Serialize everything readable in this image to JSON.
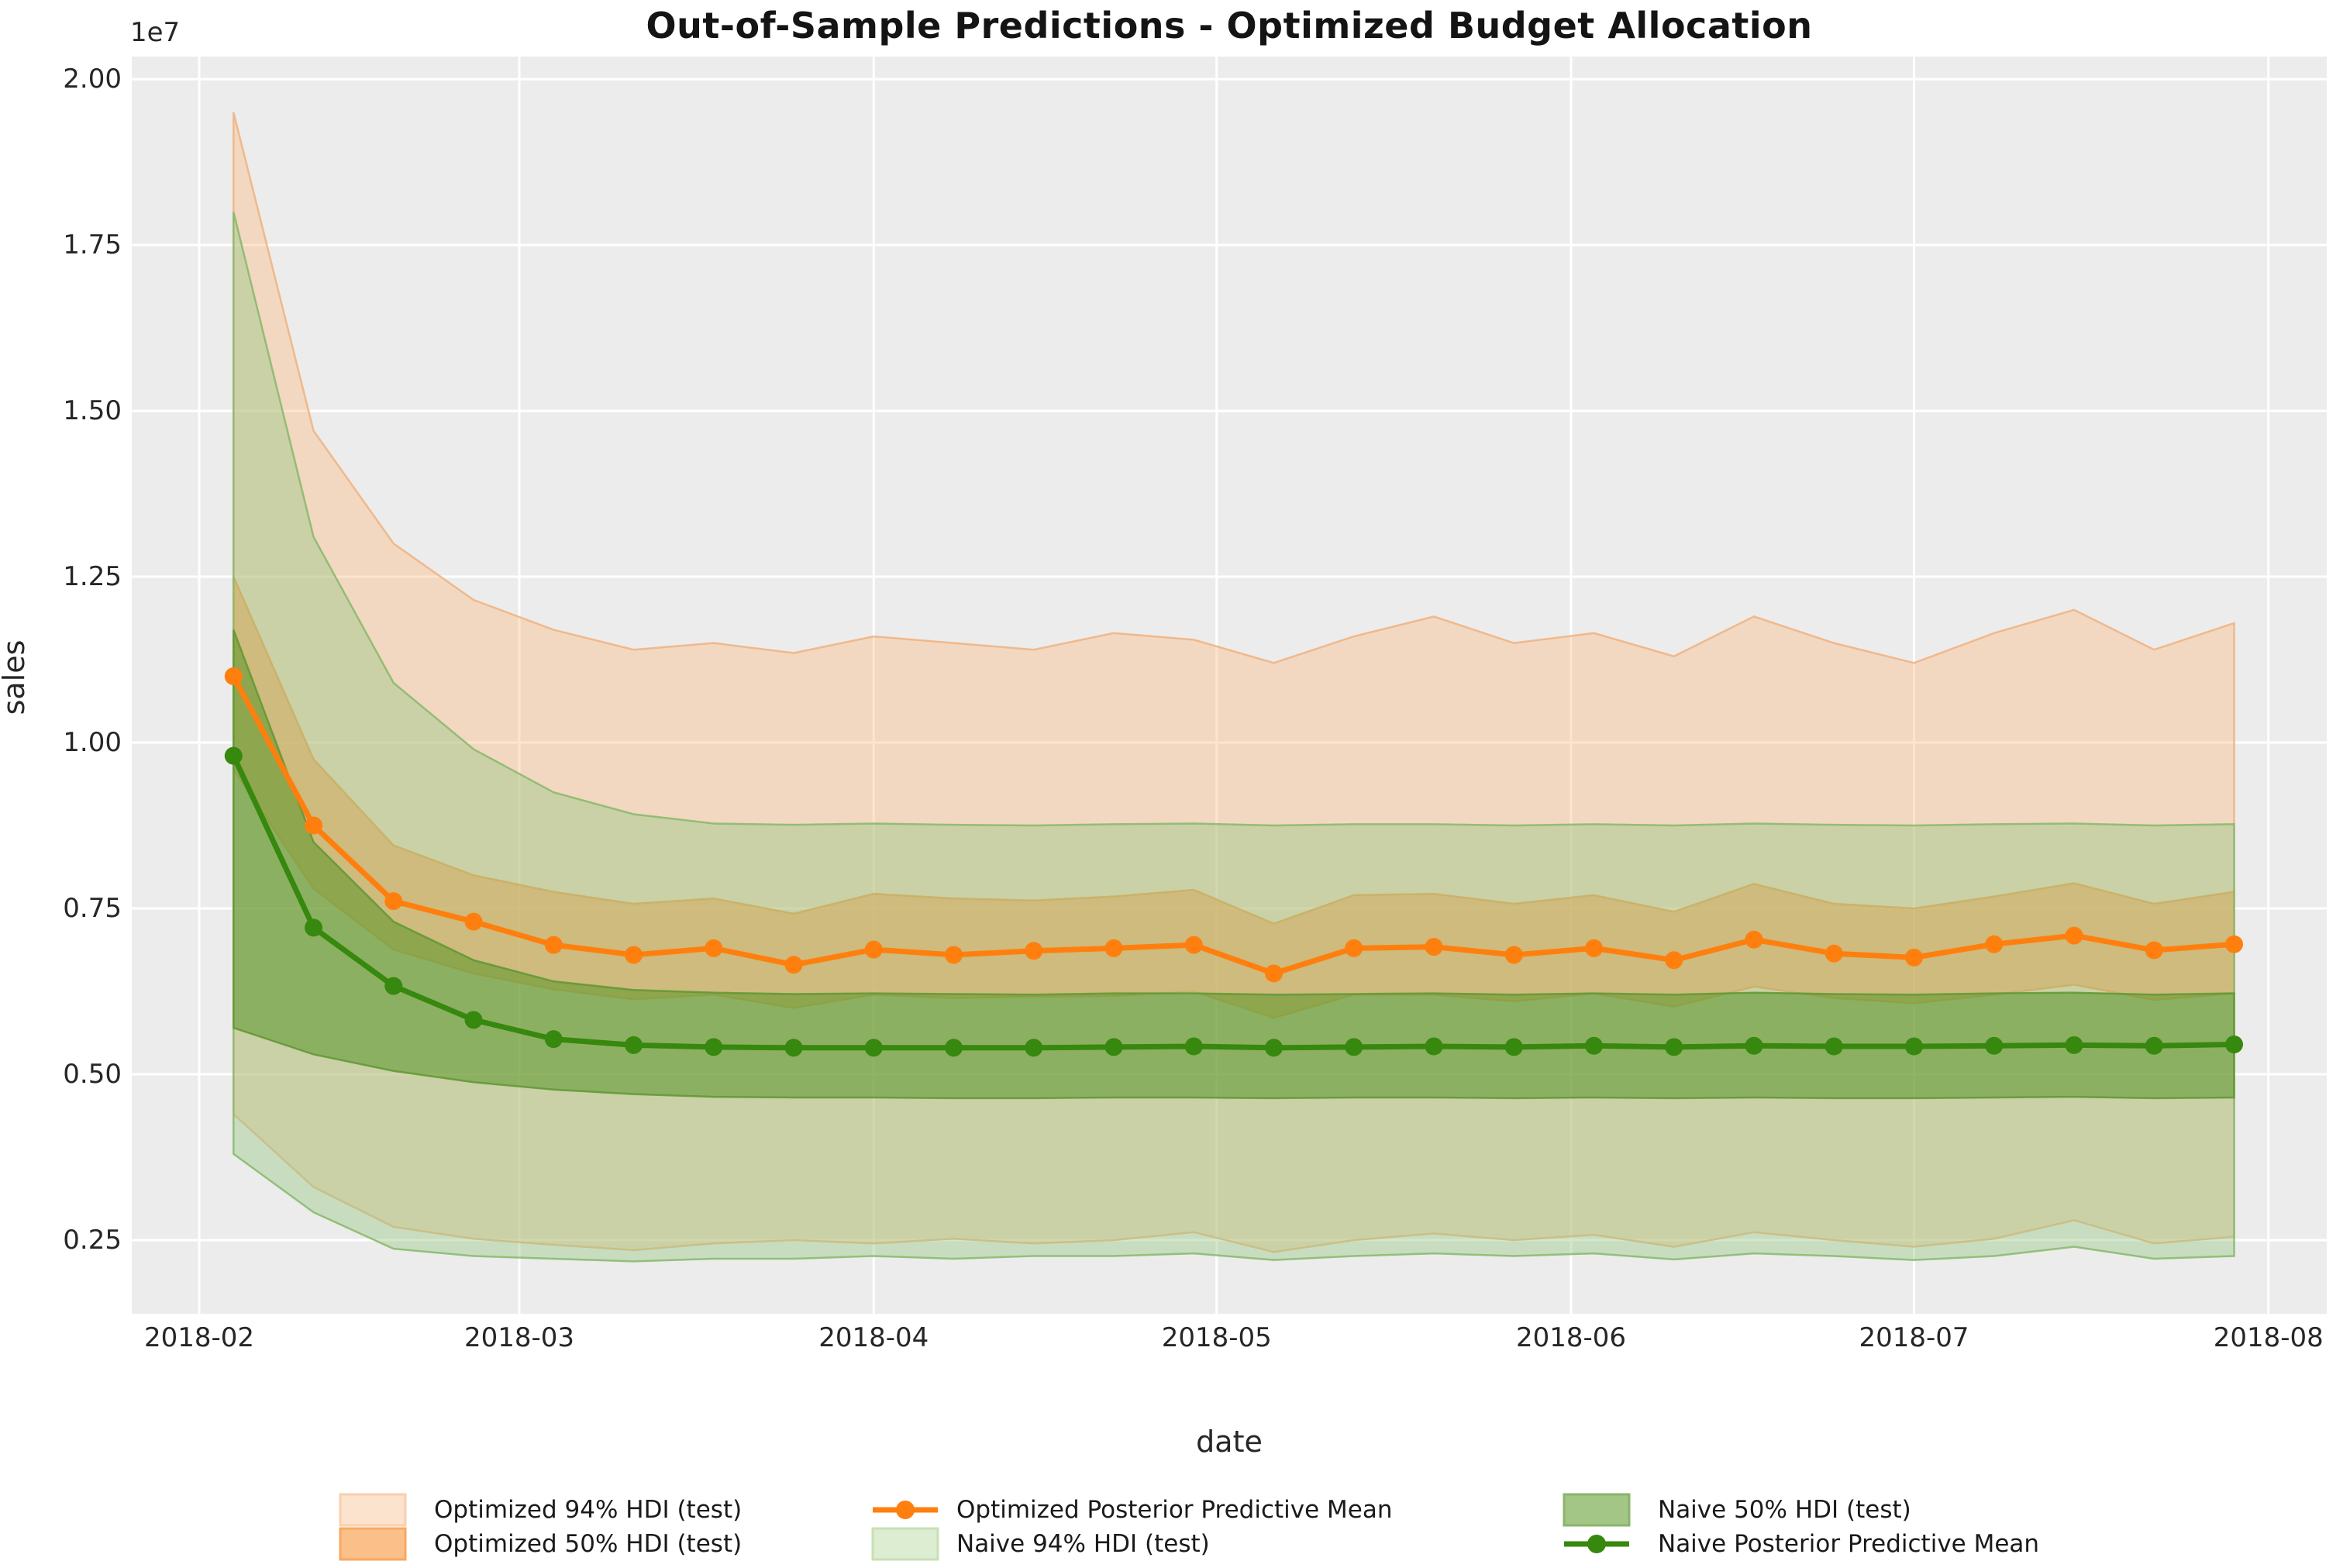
{
  "chart": {
    "title": "Out-of-Sample Predictions - Optimized Budget Allocation",
    "x_axis": {
      "label": "date"
    },
    "y_axis": {
      "label": "sales",
      "offset_text": "1e7"
    }
  },
  "chart_data": {
    "type": "line",
    "title": "Out-of-Sample Predictions - Optimized Budget Allocation",
    "xlabel": "date",
    "ylabel": "sales",
    "y_offset_text": "1e7",
    "y_multiplier": 10000000,
    "grid": true,
    "legend_position": "below",
    "background_color": "#ececec",
    "gridline_color": "#ffffff",
    "ylim": [
      0.139,
      2.034
    ],
    "x_start_date": "2018-02-01",
    "xlim_days": [
      -5.9,
      186.1
    ],
    "y_ticks": [
      {
        "value": 0.25,
        "label": "0.25"
      },
      {
        "value": 0.5,
        "label": "0.50"
      },
      {
        "value": 0.75,
        "label": "0.75"
      },
      {
        "value": 1.0,
        "label": "1.00"
      },
      {
        "value": 1.25,
        "label": "1.25"
      },
      {
        "value": 1.5,
        "label": "1.50"
      },
      {
        "value": 1.75,
        "label": "1.75"
      },
      {
        "value": 2.0,
        "label": "2.00"
      }
    ],
    "x_ticks": [
      {
        "date": "2018-02-01",
        "label": "2018-02"
      },
      {
        "date": "2018-03-01",
        "label": "2018-03"
      },
      {
        "date": "2018-04-01",
        "label": "2018-04"
      },
      {
        "date": "2018-05-01",
        "label": "2018-05"
      },
      {
        "date": "2018-06-01",
        "label": "2018-06"
      },
      {
        "date": "2018-07-01",
        "label": "2018-07"
      },
      {
        "date": "2018-08-01",
        "label": "2018-08"
      }
    ],
    "x": [
      "2018-02-04",
      "2018-02-11",
      "2018-02-18",
      "2018-02-25",
      "2018-03-04",
      "2018-03-11",
      "2018-03-18",
      "2018-03-25",
      "2018-04-01",
      "2018-04-08",
      "2018-04-15",
      "2018-04-22",
      "2018-04-29",
      "2018-05-06",
      "2018-05-13",
      "2018-05-20",
      "2018-05-27",
      "2018-06-03",
      "2018-06-10",
      "2018-06-17",
      "2018-06-24",
      "2018-07-01",
      "2018-07-08",
      "2018-07-15",
      "2018-07-22",
      "2018-07-29"
    ],
    "bands": [
      {
        "name": "Optimized 94% HDI (test)",
        "fill": "#fdb778",
        "fill_opacity": 0.38,
        "edge": "#f0b27f",
        "upper": [
          1.95,
          1.47,
          1.3,
          1.215,
          1.17,
          1.14,
          1.15,
          1.135,
          1.16,
          1.15,
          1.14,
          1.165,
          1.155,
          1.12,
          1.16,
          1.19,
          1.15,
          1.165,
          1.13,
          1.19,
          1.15,
          1.12,
          1.165,
          1.2,
          1.14,
          1.18
        ],
        "lower": [
          0.44,
          0.33,
          0.27,
          0.252,
          0.243,
          0.235,
          0.245,
          0.25,
          0.245,
          0.252,
          0.245,
          0.25,
          0.262,
          0.232,
          0.25,
          0.26,
          0.25,
          0.258,
          0.24,
          0.262,
          0.25,
          0.24,
          0.252,
          0.28,
          0.245,
          0.255
        ]
      },
      {
        "name": "Optimized 50% HDI (test)",
        "fill": "#fa8c32",
        "fill_opacity": 0.5,
        "edge": "#ef9d4d",
        "upper": [
          1.25,
          0.975,
          0.845,
          0.8,
          0.775,
          0.757,
          0.765,
          0.742,
          0.772,
          0.765,
          0.762,
          0.768,
          0.778,
          0.727,
          0.77,
          0.772,
          0.757,
          0.77,
          0.745,
          0.787,
          0.757,
          0.75,
          0.768,
          0.788,
          0.757,
          0.775
        ],
        "lower": [
          0.96,
          0.78,
          0.688,
          0.652,
          0.628,
          0.613,
          0.62,
          0.6,
          0.62,
          0.615,
          0.617,
          0.618,
          0.625,
          0.585,
          0.62,
          0.62,
          0.61,
          0.622,
          0.602,
          0.632,
          0.615,
          0.607,
          0.62,
          0.635,
          0.612,
          0.622
        ]
      },
      {
        "name": "Naive 94% HDI (test)",
        "fill": "#96c882",
        "fill_opacity": 0.42,
        "edge": "#86b86a",
        "upper": [
          1.8,
          1.31,
          1.09,
          0.99,
          0.925,
          0.892,
          0.878,
          0.876,
          0.878,
          0.876,
          0.875,
          0.877,
          0.878,
          0.875,
          0.877,
          0.877,
          0.875,
          0.877,
          0.875,
          0.878,
          0.876,
          0.875,
          0.877,
          0.878,
          0.875,
          0.877
        ],
        "lower": [
          0.38,
          0.292,
          0.237,
          0.226,
          0.222,
          0.218,
          0.222,
          0.222,
          0.226,
          0.222,
          0.226,
          0.226,
          0.23,
          0.22,
          0.226,
          0.23,
          0.226,
          0.23,
          0.221,
          0.23,
          0.226,
          0.22,
          0.226,
          0.24,
          0.222,
          0.226
        ]
      },
      {
        "name": "Naive 50% HDI (test)",
        "fill": "#5a9628",
        "fill_opacity": 0.55,
        "edge": "#5f9732",
        "upper": [
          1.17,
          0.85,
          0.73,
          0.672,
          0.64,
          0.627,
          0.623,
          0.621,
          0.622,
          0.621,
          0.62,
          0.622,
          0.622,
          0.62,
          0.621,
          0.622,
          0.62,
          0.622,
          0.62,
          0.623,
          0.621,
          0.62,
          0.622,
          0.623,
          0.62,
          0.622
        ],
        "lower": [
          0.57,
          0.53,
          0.505,
          0.488,
          0.477,
          0.47,
          0.466,
          0.465,
          0.465,
          0.464,
          0.464,
          0.465,
          0.465,
          0.464,
          0.465,
          0.465,
          0.464,
          0.465,
          0.464,
          0.465,
          0.464,
          0.464,
          0.465,
          0.466,
          0.464,
          0.465
        ]
      }
    ],
    "series": [
      {
        "name": "Optimized Posterior Predictive Mean",
        "color": "#ff7f0e",
        "marker": "circle",
        "values": [
          1.1,
          0.875,
          0.761,
          0.73,
          0.695,
          0.68,
          0.69,
          0.665,
          0.688,
          0.68,
          0.686,
          0.69,
          0.695,
          0.652,
          0.69,
          0.692,
          0.68,
          0.69,
          0.672,
          0.703,
          0.682,
          0.676,
          0.696,
          0.709,
          0.687,
          0.696
        ]
      },
      {
        "name": "Naive Posterior Predictive Mean",
        "color": "#37880e",
        "marker": "circle",
        "values": [
          0.98,
          0.721,
          0.633,
          0.582,
          0.553,
          0.544,
          0.541,
          0.54,
          0.54,
          0.54,
          0.54,
          0.541,
          0.542,
          0.54,
          0.541,
          0.542,
          0.541,
          0.543,
          0.541,
          0.543,
          0.542,
          0.542,
          0.543,
          0.544,
          0.543,
          0.545
        ]
      }
    ]
  },
  "legend": {
    "items": [
      {
        "label": "Optimized 94% HDI (test)",
        "swatch": "patch",
        "fill": "#fce3cd",
        "edge": "#f8cfae",
        "col": 0,
        "row": 0
      },
      {
        "label": "Optimized 50% HDI (test)",
        "swatch": "patch",
        "fill": "#fbc08a",
        "edge": "#f9a75e",
        "col": 0,
        "row": 1
      },
      {
        "label": "Optimized Posterior Predictive Mean",
        "swatch": "marker",
        "color": "#ff7f0e",
        "col": 1,
        "row": 0
      },
      {
        "label": "Naive 94% HDI (test)",
        "swatch": "patch",
        "fill": "#ddedd1",
        "edge": "#c7e0b4",
        "col": 1,
        "row": 1
      },
      {
        "label": "Naive 50% HDI (test)",
        "swatch": "patch",
        "fill": "#a3c585",
        "edge": "#8ab56a",
        "col": 2,
        "row": 0
      },
      {
        "label": "Naive Posterior Predictive Mean",
        "swatch": "marker",
        "color": "#37880e",
        "col": 2,
        "row": 1
      }
    ]
  }
}
